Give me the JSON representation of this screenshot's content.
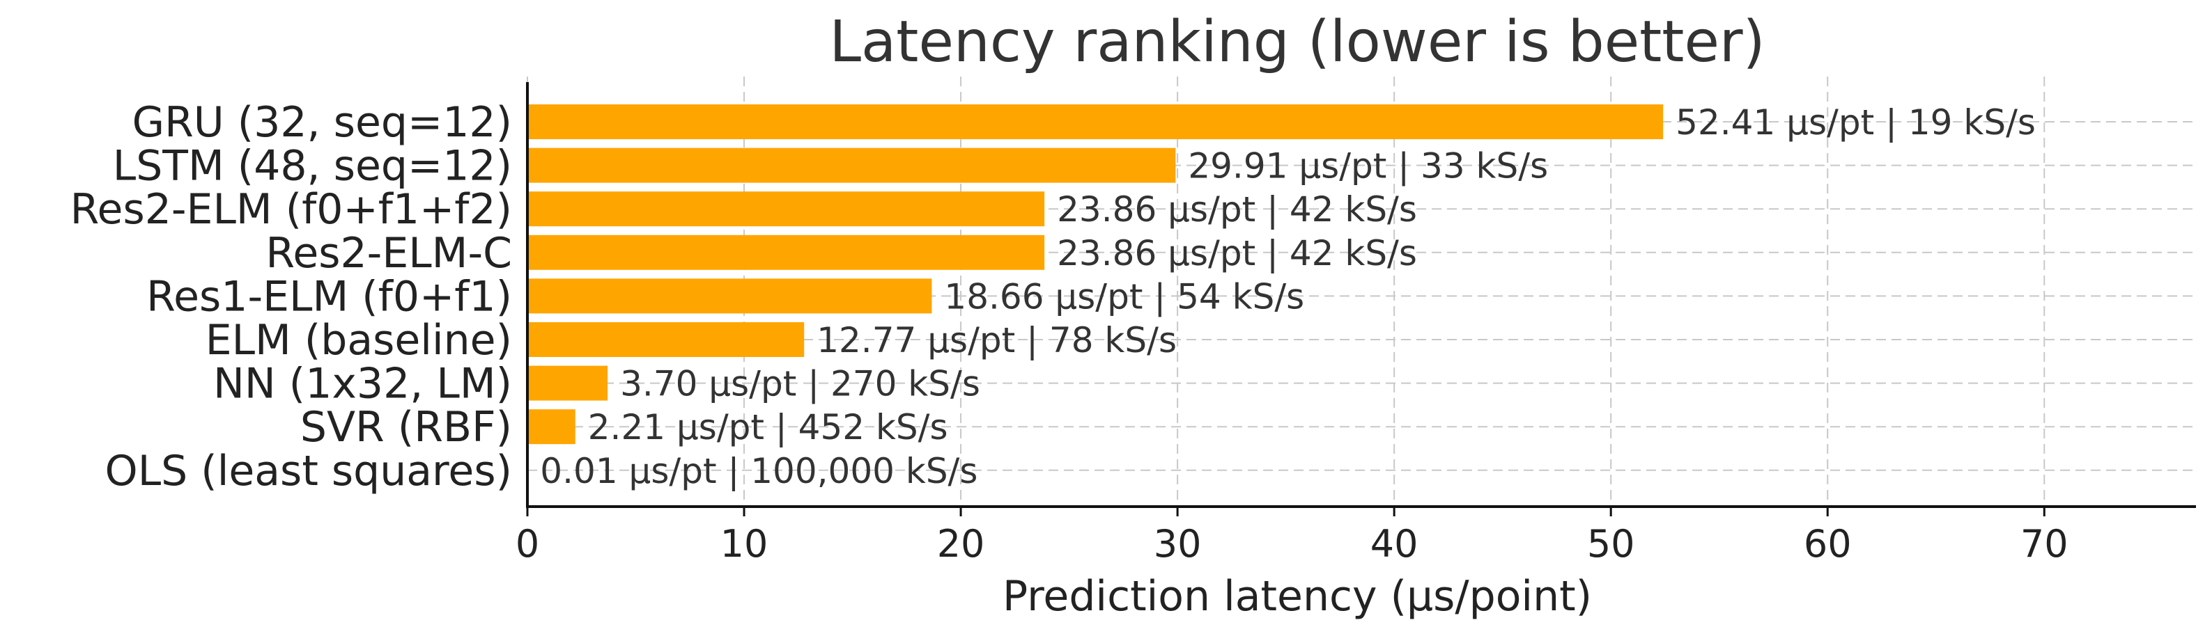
{
  "chart_data": {
    "type": "bar",
    "orientation": "horizontal",
    "title": "Latency ranking (lower is better)",
    "xlabel": "Prediction latency (µs/point)",
    "ylabel": "",
    "xlim": [
      0,
      77
    ],
    "xticks": [
      0,
      10,
      20,
      30,
      40,
      50,
      60,
      70
    ],
    "grid": true,
    "bar_color": "#ffa500",
    "categories": [
      "GRU (32, seq=12)",
      "LSTM (48, seq=12)",
      "Res2-ELM (f0+f1+f2)",
      "Res2-ELM-C",
      "Res1-ELM (f0+f1)",
      "ELM (baseline)",
      "NN (1x32, LM)",
      "SVR (RBF)",
      "OLS (least squares)"
    ],
    "values": [
      52.41,
      29.91,
      23.86,
      23.86,
      18.66,
      12.77,
      3.7,
      2.21,
      0.01
    ],
    "data_labels": [
      "52.41 µs/pt | 19 kS/s",
      "29.91 µs/pt | 33 kS/s",
      "23.86 µs/pt | 42 kS/s",
      "23.86 µs/pt | 42 kS/s",
      "18.66 µs/pt | 54 kS/s",
      "12.77 µs/pt | 78 kS/s",
      "3.70 µs/pt | 270 kS/s",
      "2.21 µs/pt | 452 kS/s",
      "0.01 µs/pt | 100,000 kS/s"
    ]
  }
}
